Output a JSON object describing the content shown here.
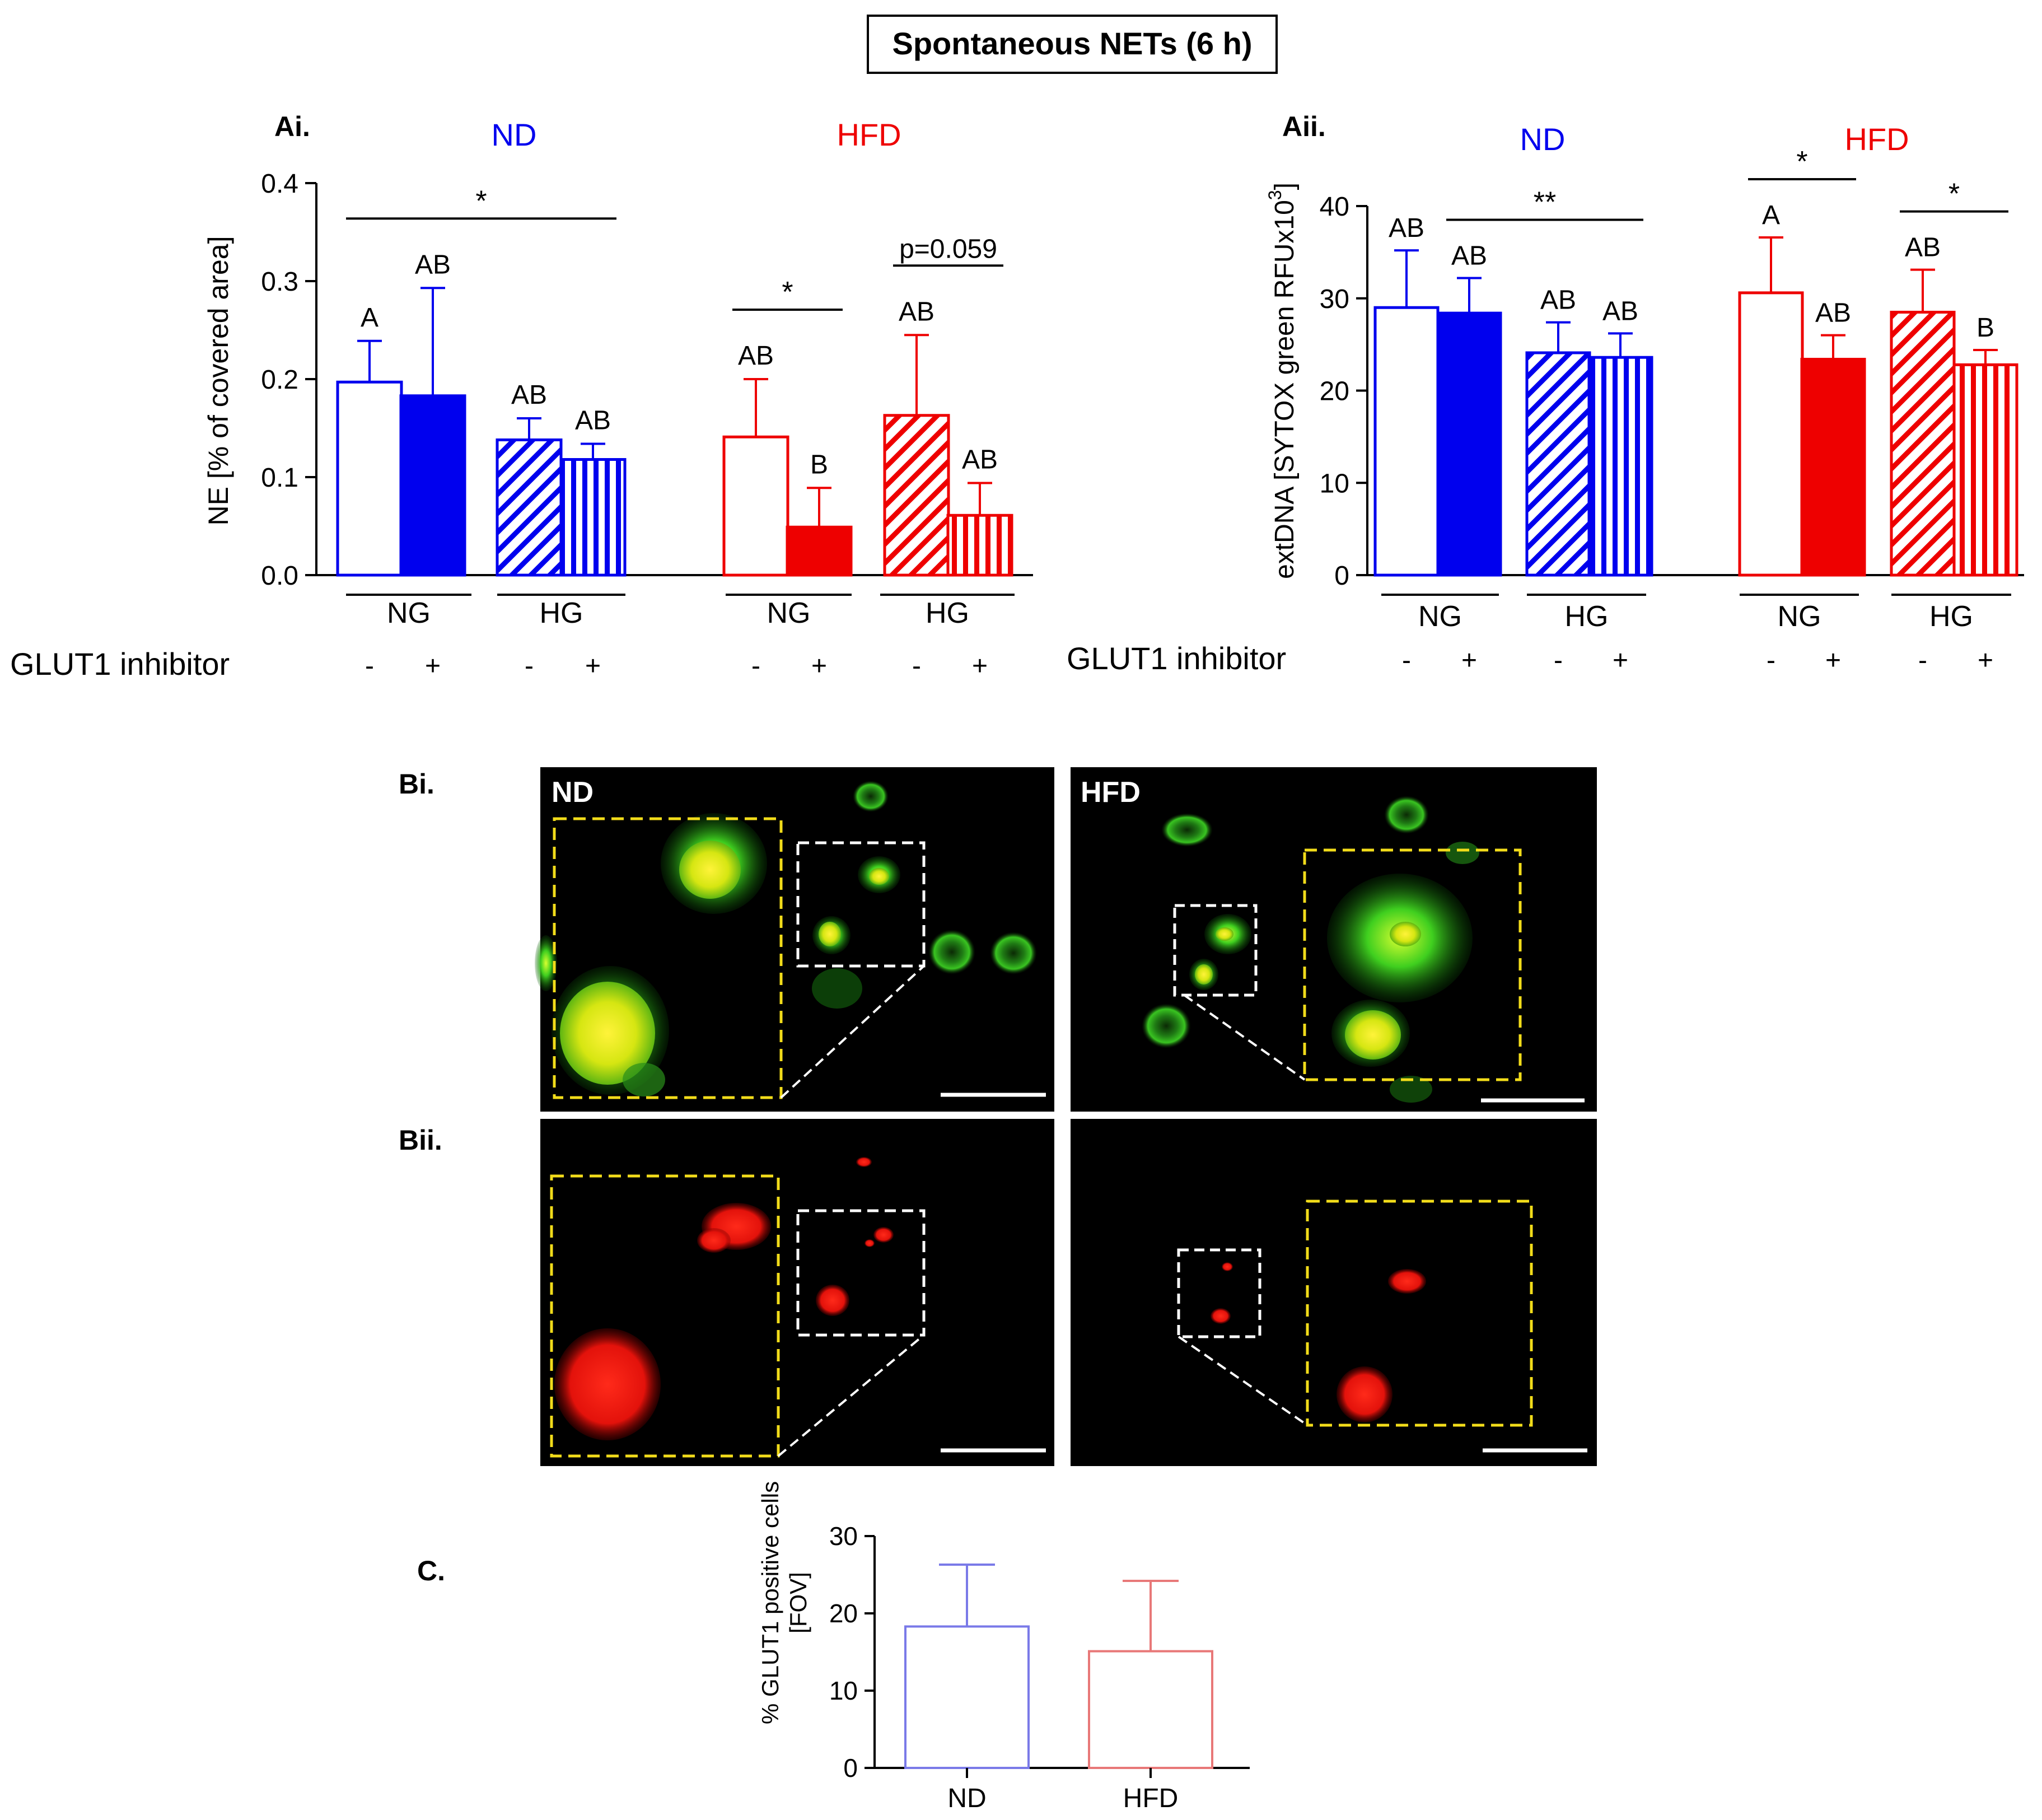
{
  "figure_title": "Spontaneous NETs (6 h)",
  "colors": {
    "nd": "#0000ee",
    "hfd": "#ee0000",
    "nd_light": "#7a7ae8",
    "hfd_light": "#e87878",
    "axis": "#000000",
    "micro_bg": "#000000"
  },
  "chart_data": [
    {
      "panel": "Ai.",
      "type": "bar",
      "ylabel": "NE [% of covered area]",
      "ylim": [
        0,
        0.4
      ],
      "yticks": [
        "0.0",
        "0.1",
        "0.2",
        "0.3",
        "0.4"
      ],
      "groups": [
        "ND",
        "HFD"
      ],
      "subgroups": [
        "NG",
        "HG",
        "NG",
        "HG"
      ],
      "inhibitor_label": "GLUT1 inhibitor",
      "inhibitor": [
        "-",
        "+",
        "-",
        "+",
        "-",
        "+",
        "-",
        "+"
      ],
      "bars": [
        {
          "value": 0.197,
          "error": 0.042,
          "letter": "A",
          "color": "nd",
          "fill": "open"
        },
        {
          "value": 0.183,
          "error": 0.11,
          "letter": "AB",
          "color": "nd",
          "fill": "solid"
        },
        {
          "value": 0.138,
          "error": 0.022,
          "letter": "AB",
          "color": "nd",
          "fill": "diag"
        },
        {
          "value": 0.118,
          "error": 0.016,
          "letter": "AB",
          "color": "nd",
          "fill": "vert"
        },
        {
          "value": 0.141,
          "error": 0.059,
          "letter": "AB",
          "color": "hfd",
          "fill": "open"
        },
        {
          "value": 0.049,
          "error": 0.04,
          "letter": "B",
          "color": "hfd",
          "fill": "solid"
        },
        {
          "value": 0.163,
          "error": 0.082,
          "letter": "AB",
          "color": "hfd",
          "fill": "diag"
        },
        {
          "value": 0.061,
          "error": 0.033,
          "letter": "AB",
          "color": "hfd",
          "fill": "vert"
        }
      ],
      "significance": [
        {
          "from": 0,
          "to": 3,
          "label": "*"
        },
        {
          "from": 4,
          "to": 5,
          "label": "*"
        },
        {
          "from": 6,
          "to": 7,
          "label": "p=0.059"
        }
      ]
    },
    {
      "panel": "Aii.",
      "type": "bar",
      "ylabel": "extDNA [SYTOX green RFUx10",
      "ylabel_sup": "3",
      "ylabel_end": "]",
      "ylim": [
        0,
        40
      ],
      "yticks": [
        "0",
        "10",
        "20",
        "30",
        "40"
      ],
      "groups": [
        "ND",
        "HFD"
      ],
      "subgroups": [
        "NG",
        "HG",
        "NG",
        "HG"
      ],
      "inhibitor_label": "GLUT1 inhibitor",
      "inhibitor": [
        "-",
        "+",
        "-",
        "+",
        "-",
        "+",
        "-",
        "+"
      ],
      "bars": [
        {
          "value": 29.0,
          "error": 6.2,
          "letter": "AB",
          "color": "nd",
          "fill": "open"
        },
        {
          "value": 28.4,
          "error": 3.8,
          "letter": "AB",
          "color": "nd",
          "fill": "solid"
        },
        {
          "value": 24.1,
          "error": 3.3,
          "letter": "AB",
          "color": "nd",
          "fill": "diag"
        },
        {
          "value": 23.6,
          "error": 2.6,
          "letter": "AB",
          "color": "nd",
          "fill": "vert"
        },
        {
          "value": 30.6,
          "error": 6.0,
          "letter": "A",
          "color": "hfd",
          "fill": "open"
        },
        {
          "value": 23.4,
          "error": 2.6,
          "letter": "AB",
          "color": "hfd",
          "fill": "solid"
        },
        {
          "value": 28.5,
          "error": 4.6,
          "letter": "AB",
          "color": "hfd",
          "fill": "diag"
        },
        {
          "value": 22.8,
          "error": 1.6,
          "letter": "B",
          "color": "hfd",
          "fill": "vert"
        }
      ],
      "significance": [
        {
          "from": 1,
          "to": 3,
          "label": "**"
        },
        {
          "from": 4,
          "to": 5,
          "label": "*"
        },
        {
          "from": 6,
          "to": 7,
          "label": "*"
        }
      ]
    },
    {
      "panel": "C.",
      "type": "bar",
      "ylabel": "% GLUT1 positive cells",
      "ylabel2": "[FOV]",
      "ylim": [
        0,
        30
      ],
      "yticks": [
        "0",
        "10",
        "20",
        "30"
      ],
      "categories": [
        "ND",
        "HFD"
      ],
      "values": [
        18.3,
        15.1
      ],
      "errors": [
        8.0,
        9.1
      ],
      "colors": [
        "nd_light",
        "hfd_light"
      ]
    }
  ],
  "microscopy": {
    "panel_bi": "Bi.",
    "panel_bii": "Bii.",
    "labels": [
      "ND",
      "HFD"
    ]
  }
}
